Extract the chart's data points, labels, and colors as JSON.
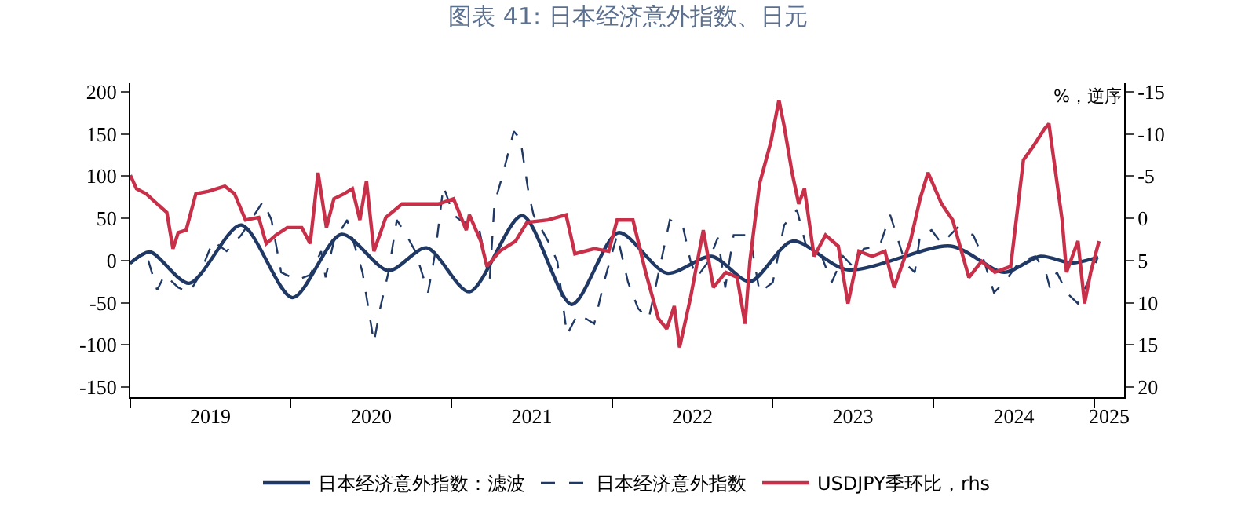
{
  "chart_data": {
    "type": "line",
    "title": "图表 41: 日本经济意外指数、日元",
    "y2label": "%，逆序",
    "xlim": [
      "2019-01-01",
      "2025-03-10"
    ],
    "xticks": [
      {
        "value": "2019-01-01",
        "label": null
      },
      {
        "value": "2020-01-01",
        "label": null
      },
      {
        "value": "2021-01-01",
        "label": null
      },
      {
        "value": "2022-01-01",
        "label": null
      },
      {
        "value": "2023-01-01",
        "label": null
      },
      {
        "value": "2024-01-01",
        "label": null
      },
      {
        "value": "2025-01-01",
        "label": null
      },
      {
        "value": "2019-07-02",
        "label": "2019"
      },
      {
        "value": "2020-07-02",
        "label": "2020"
      },
      {
        "value": "2021-07-02",
        "label": "2021"
      },
      {
        "value": "2022-07-02",
        "label": "2022"
      },
      {
        "value": "2023-07-02",
        "label": "2023"
      },
      {
        "value": "2024-07-02",
        "label": "2024"
      },
      {
        "value": "2025-02-04",
        "label": "2025"
      }
    ],
    "ylim": [
      -162,
      210
    ],
    "yticks": [
      -150,
      -100,
      -50,
      0,
      50,
      100,
      150,
      200
    ],
    "y2lim": [
      21.2,
      -16
    ],
    "y2ticks": [
      20,
      15,
      10,
      5,
      0,
      -5,
      -10,
      -15
    ],
    "grid": false,
    "legend": "bottom",
    "series": [
      {
        "name": "日本经济意外指数：滤波",
        "color": "#1f3864",
        "line_style": "solid",
        "x": [
          "2019-01-01",
          "2019-02-15",
          "2019-05-15",
          "2019-09-10",
          "2020-01-05",
          "2020-04-25",
          "2020-08-10",
          "2020-11-05",
          "2021-02-10",
          "2021-06-10",
          "2021-10-01",
          "2022-01-15",
          "2022-05-05",
          "2022-08-15",
          "2022-11-10",
          "2023-02-15",
          "2023-06-20",
          "2024-02-10",
          "2024-06-10",
          "2024-09-01",
          "2024-11-10",
          "2025-01-10"
        ],
        "values": [
          -3,
          10,
          -27,
          42,
          -44,
          31,
          -12,
          15,
          -37,
          53,
          -52,
          33,
          -15,
          5,
          -25,
          23,
          -11,
          17,
          -14,
          5,
          -3,
          4
        ]
      },
      {
        "name": "日本经济意外指数",
        "color": "#1f3864",
        "line_style": "dashed",
        "x": [
          "2019-01-01",
          "2019-02-05",
          "2019-03-03",
          "2019-03-20",
          "2019-04-20",
          "2019-05-15",
          "2019-06-05",
          "2019-07-08",
          "2019-08-08",
          "2019-09-10",
          "2019-10-30",
          "2019-11-18",
          "2019-12-10",
          "2020-01-15",
          "2020-02-14",
          "2020-03-10",
          "2020-03-20",
          "2020-04-08",
          "2020-05-08",
          "2020-06-12",
          "2020-07-08",
          "2020-07-22",
          "2020-08-10",
          "2020-08-29",
          "2020-09-20",
          "2020-10-10",
          "2020-11-08",
          "2020-11-25",
          "2020-12-13",
          "2021-01-05",
          "2021-01-20",
          "2021-03-05",
          "2021-03-28",
          "2021-04-08",
          "2021-04-26",
          "2021-05-22",
          "2021-06-06",
          "2021-06-25",
          "2021-07-06",
          "2021-08-08",
          "2021-08-29",
          "2021-09-20",
          "2021-10-15",
          "2021-11-21",
          "2021-12-13",
          "2022-01-12",
          "2022-02-06",
          "2022-03-01",
          "2022-03-25",
          "2022-04-22",
          "2022-05-12",
          "2022-06-10",
          "2022-06-28",
          "2022-07-12",
          "2022-08-08",
          "2022-08-29",
          "2022-09-15",
          "2022-10-04",
          "2022-11-10",
          "2022-12-02",
          "2023-01-01",
          "2023-01-27",
          "2023-02-25",
          "2023-03-18",
          "2023-04-22",
          "2023-05-15",
          "2023-06-10",
          "2023-07-02",
          "2023-07-27",
          "2023-09-01",
          "2023-09-25",
          "2023-10-30",
          "2023-11-20",
          "2023-12-02",
          "2023-12-28",
          "2024-01-20",
          "2024-02-25",
          "2024-04-01",
          "2024-04-22",
          "2024-05-18",
          "2024-06-10",
          "2024-07-16",
          "2024-08-20",
          "2024-09-13",
          "2024-09-22",
          "2024-10-08",
          "2024-10-30",
          "2024-11-25",
          "2024-12-17",
          "2025-01-08"
        ],
        "values": [
          -4,
          10,
          -35,
          -17,
          -32,
          -38,
          -20,
          23,
          11,
          30,
          70,
          48,
          -14,
          -23,
          -17,
          11,
          -20,
          23,
          48,
          -14,
          -97,
          -57,
          -14,
          48,
          30,
          11,
          -38,
          11,
          88,
          54,
          48,
          36,
          -26,
          67,
          100,
          153,
          144,
          79,
          54,
          23,
          -1,
          -88,
          -63,
          -75,
          -26,
          30,
          -26,
          -57,
          -69,
          -1,
          48,
          42,
          -1,
          -20,
          -1,
          27,
          -32,
          30,
          30,
          -38,
          -26,
          42,
          60,
          17,
          5,
          -26,
          5,
          -7,
          14,
          17,
          54,
          -4,
          -14,
          30,
          36,
          20,
          39,
          30,
          5,
          -38,
          -26,
          -1,
          5,
          -14,
          -32,
          -14,
          -38,
          -51,
          -26,
          2
        ]
      },
      {
        "name": "USDJPY季环比，rhs",
        "color": "#c8304a",
        "line_style": "solid",
        "axis": "y2",
        "x": [
          "2019-01-01",
          "2019-01-15",
          "2019-02-06",
          "2019-02-25",
          "2019-03-25",
          "2019-04-08",
          "2019-04-20",
          "2019-05-08",
          "2019-05-30",
          "2019-06-28",
          "2019-08-04",
          "2019-08-26",
          "2019-09-20",
          "2019-10-20",
          "2019-11-06",
          "2019-11-28",
          "2019-12-24",
          "2020-01-26",
          "2020-02-14",
          "2020-03-03",
          "2020-03-22",
          "2020-04-08",
          "2020-05-01",
          "2020-05-20",
          "2020-06-06",
          "2020-06-21",
          "2020-07-08",
          "2020-08-04",
          "2020-09-10",
          "2020-10-15",
          "2020-12-02",
          "2021-01-05",
          "2021-02-03",
          "2021-02-10",
          "2021-03-08",
          "2021-03-22",
          "2021-04-20",
          "2021-05-26",
          "2021-06-21",
          "2021-08-08",
          "2021-09-18",
          "2021-10-08",
          "2021-11-21",
          "2021-12-24",
          "2022-01-12",
          "2022-02-17",
          "2022-03-18",
          "2022-04-16",
          "2022-05-05",
          "2022-05-22",
          "2022-06-03",
          "2022-06-28",
          "2022-07-27",
          "2022-08-19",
          "2022-09-16",
          "2022-10-12",
          "2022-10-30",
          "2022-11-10",
          "2022-12-02",
          "2022-12-28",
          "2023-01-15",
          "2023-01-27",
          "2023-02-14",
          "2023-03-01",
          "2023-03-14",
          "2023-04-05",
          "2023-05-01",
          "2023-05-30",
          "2023-06-21",
          "2023-07-16",
          "2023-08-15",
          "2023-09-13",
          "2023-10-04",
          "2023-11-10",
          "2023-12-02",
          "2023-12-20",
          "2024-01-20",
          "2024-02-14",
          "2024-03-22",
          "2024-04-20",
          "2024-05-20",
          "2024-06-25",
          "2024-07-24",
          "2024-08-15",
          "2024-09-10",
          "2024-09-20",
          "2024-10-20",
          "2024-10-30",
          "2024-11-25",
          "2024-12-10",
          "2024-12-24",
          "2025-01-12"
        ],
        "values": [
          -5.1,
          -3.5,
          -2.9,
          -2.0,
          -0.7,
          3.6,
          1.7,
          1.4,
          -2.9,
          -3.2,
          -3.8,
          -2.9,
          0.2,
          -0.1,
          3.0,
          2.0,
          1.1,
          1.1,
          3.0,
          -5.4,
          1.1,
          -2.3,
          -2.9,
          -3.5,
          0.2,
          -4.4,
          3.9,
          -0.1,
          -1.7,
          -1.7,
          -1.7,
          -2.3,
          1.4,
          -0.4,
          2.7,
          5.7,
          3.9,
          2.7,
          0.5,
          0.2,
          -0.4,
          4.2,
          3.6,
          3.9,
          0.2,
          0.2,
          6.4,
          11.9,
          13.1,
          10.4,
          15.3,
          9.4,
          1.4,
          8.2,
          6.4,
          7.0,
          12.5,
          5.1,
          -4.1,
          -9.1,
          -14.0,
          -10.9,
          -5.4,
          -1.7,
          -3.5,
          4.5,
          2.0,
          3.3,
          10.1,
          3.9,
          4.5,
          3.9,
          8.2,
          2.7,
          -2.3,
          -5.4,
          -1.7,
          0.2,
          7.0,
          5.1,
          6.4,
          5.7,
          -6.9,
          -8.5,
          -10.6,
          -11.2,
          0.2,
          6.4,
          2.7,
          10.1,
          6.4,
          2.7
        ]
      }
    ]
  }
}
